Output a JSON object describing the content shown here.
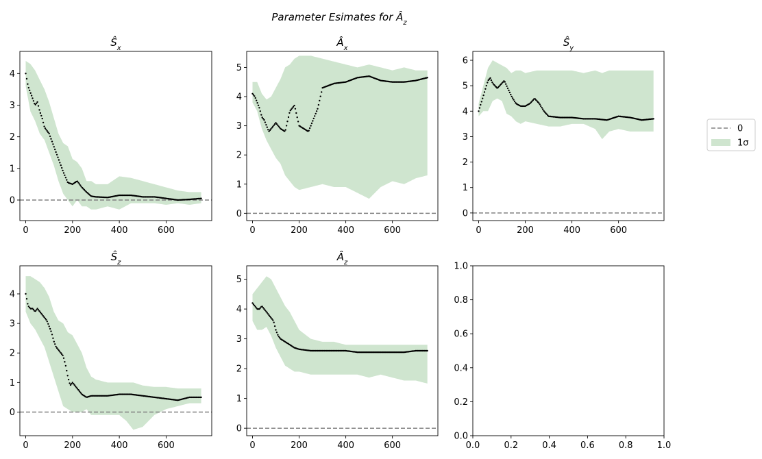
{
  "figure": {
    "suptitle": "Parameter Esimates for Â_z",
    "legend": {
      "placement": "right",
      "entries": [
        {
          "label": "0",
          "style": "dashed-line",
          "color": "#808080"
        },
        {
          "label": "1σ",
          "style": "filled-patch",
          "color": "#cfe5cf"
        }
      ]
    }
  },
  "colors": {
    "estimate_points": "#000000",
    "band_fill": "#cfe5cf",
    "zero_line": "#808080",
    "axes": "#000000"
  },
  "chart_data": [
    {
      "type": "scatter",
      "title": "Ŝ_x",
      "xlabel": "",
      "ylabel": "",
      "xlim": [
        -25,
        795
      ],
      "ylim": [
        -0.65,
        4.7
      ],
      "xticks": [
        0,
        200,
        400,
        600
      ],
      "yticks": [
        0,
        1,
        2,
        3,
        4
      ],
      "zero_line": 0,
      "series": [
        {
          "name": "estimate",
          "x": [
            0,
            10,
            20,
            30,
            40,
            50,
            60,
            70,
            80,
            90,
            100,
            120,
            140,
            160,
            180,
            200,
            220,
            240,
            260,
            280,
            300,
            350,
            400,
            450,
            500,
            550,
            600,
            650,
            700,
            750
          ],
          "y": [
            4.0,
            3.6,
            3.4,
            3.2,
            3.0,
            3.1,
            2.8,
            2.6,
            2.3,
            2.2,
            2.1,
            1.7,
            1.3,
            0.9,
            0.55,
            0.5,
            0.6,
            0.4,
            0.25,
            0.12,
            0.1,
            0.08,
            0.15,
            0.15,
            0.1,
            0.1,
            0.05,
            0.0,
            0.02,
            0.05
          ]
        },
        {
          "name": "1σ",
          "x": [
            0,
            20,
            40,
            60,
            80,
            100,
            120,
            140,
            160,
            180,
            200,
            220,
            240,
            260,
            280,
            300,
            350,
            400,
            450,
            500,
            550,
            600,
            650,
            700,
            750
          ],
          "lower": [
            3.6,
            2.8,
            2.5,
            2.1,
            1.9,
            1.5,
            1.1,
            0.6,
            0.2,
            0.0,
            -0.2,
            0.0,
            -0.2,
            -0.2,
            -0.3,
            -0.3,
            -0.2,
            -0.3,
            -0.1,
            -0.1,
            -0.1,
            -0.15,
            -0.1,
            -0.15,
            -0.1
          ],
          "upper": [
            4.4,
            4.3,
            4.1,
            3.8,
            3.5,
            3.1,
            2.6,
            2.1,
            1.8,
            1.7,
            1.3,
            1.2,
            1.0,
            0.6,
            0.6,
            0.5,
            0.5,
            0.75,
            0.7,
            0.6,
            0.5,
            0.4,
            0.3,
            0.25,
            0.25
          ]
        }
      ]
    },
    {
      "type": "scatter",
      "title": "Â_x",
      "xlabel": "",
      "ylabel": "",
      "xlim": [
        -25,
        795
      ],
      "ylim": [
        -0.25,
        5.55
      ],
      "xticks": [
        0,
        200,
        400,
        600
      ],
      "yticks": [
        0,
        1,
        2,
        3,
        4,
        5
      ],
      "zero_line": 0,
      "series": [
        {
          "name": "estimate",
          "x": [
            0,
            10,
            20,
            30,
            40,
            50,
            60,
            70,
            80,
            100,
            120,
            140,
            160,
            180,
            200,
            220,
            240,
            260,
            280,
            300,
            350,
            400,
            450,
            500,
            550,
            600,
            650,
            700,
            750
          ],
          "y": [
            4.1,
            4.0,
            3.8,
            3.6,
            3.3,
            3.2,
            3.0,
            2.8,
            2.9,
            3.1,
            2.9,
            2.8,
            3.5,
            3.7,
            3.0,
            2.9,
            2.8,
            3.2,
            3.6,
            4.3,
            4.45,
            4.5,
            4.65,
            4.7,
            4.55,
            4.5,
            4.5,
            4.55,
            4.65
          ]
        },
        {
          "name": "1σ",
          "x": [
            0,
            20,
            40,
            60,
            80,
            100,
            120,
            140,
            160,
            180,
            200,
            250,
            300,
            350,
            400,
            450,
            500,
            550,
            600,
            650,
            700,
            750
          ],
          "lower": [
            3.8,
            3.5,
            2.9,
            2.5,
            2.2,
            1.9,
            1.7,
            1.3,
            1.1,
            0.9,
            0.8,
            0.9,
            1.0,
            0.9,
            0.9,
            0.7,
            0.5,
            0.9,
            1.1,
            1.0,
            1.2,
            1.3
          ],
          "upper": [
            4.5,
            4.5,
            4.1,
            3.9,
            4.0,
            4.3,
            4.6,
            5.0,
            5.1,
            5.3,
            5.4,
            5.4,
            5.3,
            5.2,
            5.1,
            5.0,
            5.1,
            5.0,
            4.9,
            5.0,
            4.9,
            4.9
          ]
        }
      ]
    },
    {
      "type": "scatter",
      "title": "Ŝ_y",
      "xlabel": "",
      "ylabel": "",
      "xlim": [
        -25,
        795
      ],
      "ylim": [
        -0.3,
        6.35
      ],
      "xticks": [
        0,
        200,
        400,
        600
      ],
      "yticks": [
        0,
        1,
        2,
        3,
        4,
        5,
        6
      ],
      "zero_line": 0,
      "series": [
        {
          "name": "estimate",
          "x": [
            0,
            10,
            20,
            30,
            40,
            50,
            60,
            70,
            80,
            90,
            100,
            110,
            120,
            140,
            160,
            180,
            200,
            220,
            240,
            260,
            280,
            300,
            350,
            400,
            450,
            500,
            550,
            600,
            650,
            700,
            750
          ],
          "y": [
            4.0,
            4.3,
            4.6,
            4.9,
            5.2,
            5.3,
            5.1,
            5.0,
            4.9,
            5.0,
            5.1,
            5.2,
            5.0,
            4.6,
            4.3,
            4.2,
            4.2,
            4.3,
            4.5,
            4.3,
            4.0,
            3.8,
            3.75,
            3.75,
            3.7,
            3.7,
            3.65,
            3.8,
            3.75,
            3.65,
            3.7
          ]
        },
        {
          "name": "1σ",
          "x": [
            0,
            20,
            40,
            60,
            80,
            100,
            120,
            140,
            160,
            180,
            200,
            250,
            300,
            350,
            400,
            450,
            500,
            530,
            560,
            600,
            650,
            700,
            750
          ],
          "lower": [
            3.8,
            4.0,
            4.0,
            4.4,
            4.5,
            4.4,
            3.9,
            3.8,
            3.6,
            3.5,
            3.6,
            3.5,
            3.4,
            3.4,
            3.5,
            3.5,
            3.3,
            2.9,
            3.2,
            3.3,
            3.2,
            3.2,
            3.2
          ],
          "upper": [
            4.3,
            5.0,
            5.7,
            6.0,
            5.9,
            5.8,
            5.7,
            5.5,
            5.6,
            5.6,
            5.5,
            5.6,
            5.6,
            5.6,
            5.6,
            5.5,
            5.6,
            5.5,
            5.6,
            5.6,
            5.6,
            5.6,
            5.6
          ]
        }
      ]
    },
    {
      "type": "scatter",
      "title": "Ŝ_z",
      "xlabel": "",
      "ylabel": "",
      "xlim": [
        -25,
        795
      ],
      "ylim": [
        -0.8,
        4.95
      ],
      "xticks": [
        0,
        200,
        400,
        600
      ],
      "yticks": [
        0,
        1,
        2,
        3,
        4
      ],
      "zero_line": 0,
      "series": [
        {
          "name": "estimate",
          "x": [
            0,
            10,
            20,
            30,
            40,
            50,
            60,
            70,
            80,
            90,
            100,
            110,
            120,
            130,
            140,
            160,
            170,
            180,
            190,
            200,
            220,
            240,
            260,
            280,
            300,
            350,
            400,
            450,
            500,
            550,
            600,
            650,
            700,
            750
          ],
          "y": [
            4.0,
            3.6,
            3.5,
            3.5,
            3.4,
            3.5,
            3.4,
            3.3,
            3.2,
            3.1,
            2.9,
            2.7,
            2.4,
            2.2,
            2.1,
            1.9,
            1.6,
            1.2,
            0.9,
            1.0,
            0.8,
            0.6,
            0.5,
            0.55,
            0.55,
            0.55,
            0.6,
            0.6,
            0.55,
            0.5,
            0.45,
            0.4,
            0.5,
            0.5
          ]
        },
        {
          "name": "1σ",
          "x": [
            0,
            20,
            40,
            60,
            80,
            100,
            120,
            140,
            160,
            180,
            200,
            220,
            240,
            260,
            280,
            300,
            350,
            400,
            430,
            460,
            500,
            550,
            600,
            650,
            700,
            750
          ],
          "lower": [
            3.4,
            3.0,
            2.8,
            2.5,
            2.2,
            1.7,
            1.2,
            0.7,
            0.2,
            0.1,
            0.0,
            0.0,
            0.0,
            0.1,
            -0.1,
            -0.1,
            -0.1,
            -0.1,
            -0.3,
            -0.6,
            -0.5,
            -0.1,
            0.1,
            0.2,
            0.3,
            0.3
          ],
          "upper": [
            4.6,
            4.6,
            4.5,
            4.4,
            4.2,
            3.9,
            3.4,
            3.1,
            3.0,
            2.7,
            2.6,
            2.3,
            2.0,
            1.5,
            1.2,
            1.1,
            1.0,
            1.0,
            1.0,
            1.0,
            0.9,
            0.85,
            0.85,
            0.8,
            0.8,
            0.8
          ]
        }
      ]
    },
    {
      "type": "scatter",
      "title": "Â_z",
      "xlabel": "",
      "ylabel": "",
      "xlim": [
        -25,
        795
      ],
      "ylim": [
        -0.25,
        5.45
      ],
      "xticks": [
        0,
        200,
        400,
        600
      ],
      "yticks": [
        0,
        1,
        2,
        3,
        4,
        5
      ],
      "zero_line": 0,
      "series": [
        {
          "name": "estimate",
          "x": [
            0,
            10,
            20,
            30,
            40,
            50,
            60,
            70,
            80,
            90,
            100,
            110,
            120,
            140,
            160,
            180,
            200,
            250,
            300,
            350,
            400,
            450,
            500,
            550,
            600,
            650,
            700,
            750
          ],
          "y": [
            4.2,
            4.1,
            4.0,
            4.0,
            4.1,
            4.0,
            3.9,
            3.8,
            3.7,
            3.6,
            3.3,
            3.1,
            3.0,
            2.9,
            2.8,
            2.7,
            2.65,
            2.6,
            2.6,
            2.6,
            2.6,
            2.55,
            2.55,
            2.55,
            2.55,
            2.55,
            2.6,
            2.6
          ]
        },
        {
          "name": "1σ",
          "x": [
            0,
            20,
            40,
            60,
            80,
            100,
            120,
            140,
            160,
            180,
            200,
            250,
            300,
            350,
            400,
            450,
            500,
            550,
            600,
            650,
            700,
            750
          ],
          "lower": [
            3.6,
            3.3,
            3.3,
            3.4,
            3.1,
            2.7,
            2.4,
            2.1,
            2.0,
            1.9,
            1.9,
            1.8,
            1.8,
            1.8,
            1.8,
            1.8,
            1.7,
            1.8,
            1.7,
            1.6,
            1.6,
            1.5
          ],
          "upper": [
            4.5,
            4.7,
            4.9,
            5.1,
            5.0,
            4.7,
            4.4,
            4.1,
            3.9,
            3.6,
            3.3,
            3.0,
            2.9,
            2.9,
            2.8,
            2.8,
            2.8,
            2.8,
            2.8,
            2.8,
            2.8,
            2.8
          ]
        }
      ]
    },
    {
      "type": "scatter",
      "title": "",
      "xlabel": "",
      "ylabel": "",
      "xlim": [
        0,
        1
      ],
      "ylim": [
        0,
        1
      ],
      "xticks": [
        0.0,
        0.2,
        0.4,
        0.6,
        0.8,
        1.0
      ],
      "yticks": [
        0.0,
        0.2,
        0.4,
        0.6,
        0.8,
        1.0
      ],
      "tick_format": "0.0",
      "series": []
    }
  ]
}
